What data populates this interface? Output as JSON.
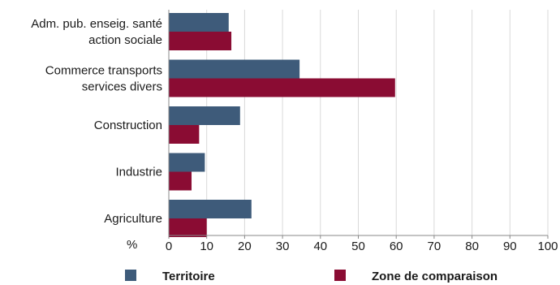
{
  "chart_data": {
    "type": "bar",
    "orientation": "horizontal",
    "categories": [
      "Adm. pub. enseig. santé\naction sociale",
      "Commerce transports\nservices divers",
      "Construction",
      "Industrie",
      "Agriculture"
    ],
    "series": [
      {
        "name": "Territoire",
        "color": "#3e5b7a",
        "values": [
          15.8,
          34.5,
          18.8,
          9.5,
          21.8
        ]
      },
      {
        "name": "Zone de comparaison",
        "color": "#8a0c33",
        "values": [
          16.5,
          59.7,
          8.0,
          6.0,
          10.0
        ]
      }
    ],
    "xlim": [
      0,
      100
    ],
    "xticks": [
      0,
      10,
      20,
      30,
      40,
      50,
      60,
      70,
      80,
      90,
      100
    ],
    "unit_label": "%",
    "grid": true,
    "legend_position": "bottom",
    "title": "",
    "xlabel": "",
    "ylabel": ""
  }
}
